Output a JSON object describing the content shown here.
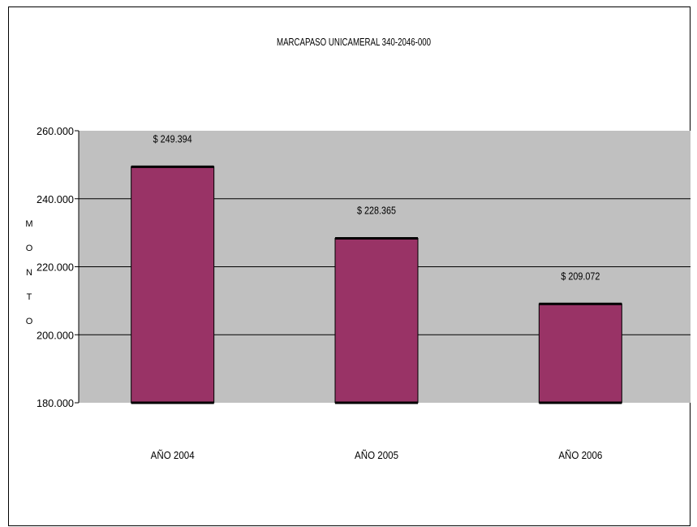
{
  "chart_data": {
    "type": "bar",
    "title": "MARCAPASO UNICAMERAL 340-2046-000",
    "ylabel": "M O N T O",
    "categories": [
      "AÑO 2004",
      "AÑO 2005",
      "AÑO 2006"
    ],
    "values": [
      249394,
      228365,
      209072
    ],
    "data_labels": [
      "$ 249.394",
      "$ 228.365",
      "$ 209.072"
    ],
    "ylim": [
      180000,
      260000
    ],
    "yticks": [
      180000,
      200000,
      220000,
      240000,
      260000
    ],
    "ytick_labels": [
      "180.000",
      "200.000",
      "220.000",
      "240.000",
      "260.000"
    ],
    "grid": true,
    "colors": {
      "bar": "#993366",
      "plot_background": "#c0c0c0",
      "gridline": "#000000"
    }
  }
}
